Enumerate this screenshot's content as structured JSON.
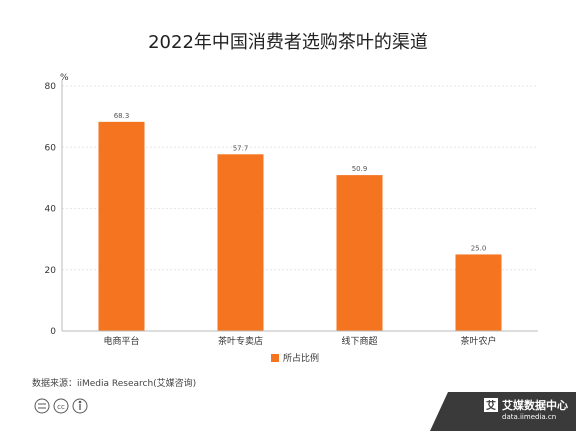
{
  "chart_data": {
    "type": "bar",
    "title": "2022年中国消费者选购茶叶的渠道",
    "unit": "%",
    "categories": [
      "电商平台",
      "茶叶专卖店",
      "线下商超",
      "茶叶农户"
    ],
    "series": [
      {
        "name": "所占比例",
        "values": [
          68.3,
          57.7,
          50.9,
          25.0
        ],
        "labels": [
          "68.3",
          "57.7",
          "50.9",
          "25.0"
        ],
        "color": "#F47420"
      }
    ],
    "ylim": [
      0,
      80
    ],
    "yticks": [
      0,
      20,
      40,
      60,
      80
    ],
    "grid": true,
    "legend": "bottom"
  },
  "footer": {
    "source": "数据来源：iiMedia Research(艾媒咨询)",
    "logo_main": "艾媒数据中心",
    "logo_sub": "data.iimedia.cn"
  },
  "colors": {
    "bar": "#F47420",
    "grid": "#E6E6E6",
    "axis": "#BBBBBB",
    "logo_bg": "#3A3A3A"
  }
}
